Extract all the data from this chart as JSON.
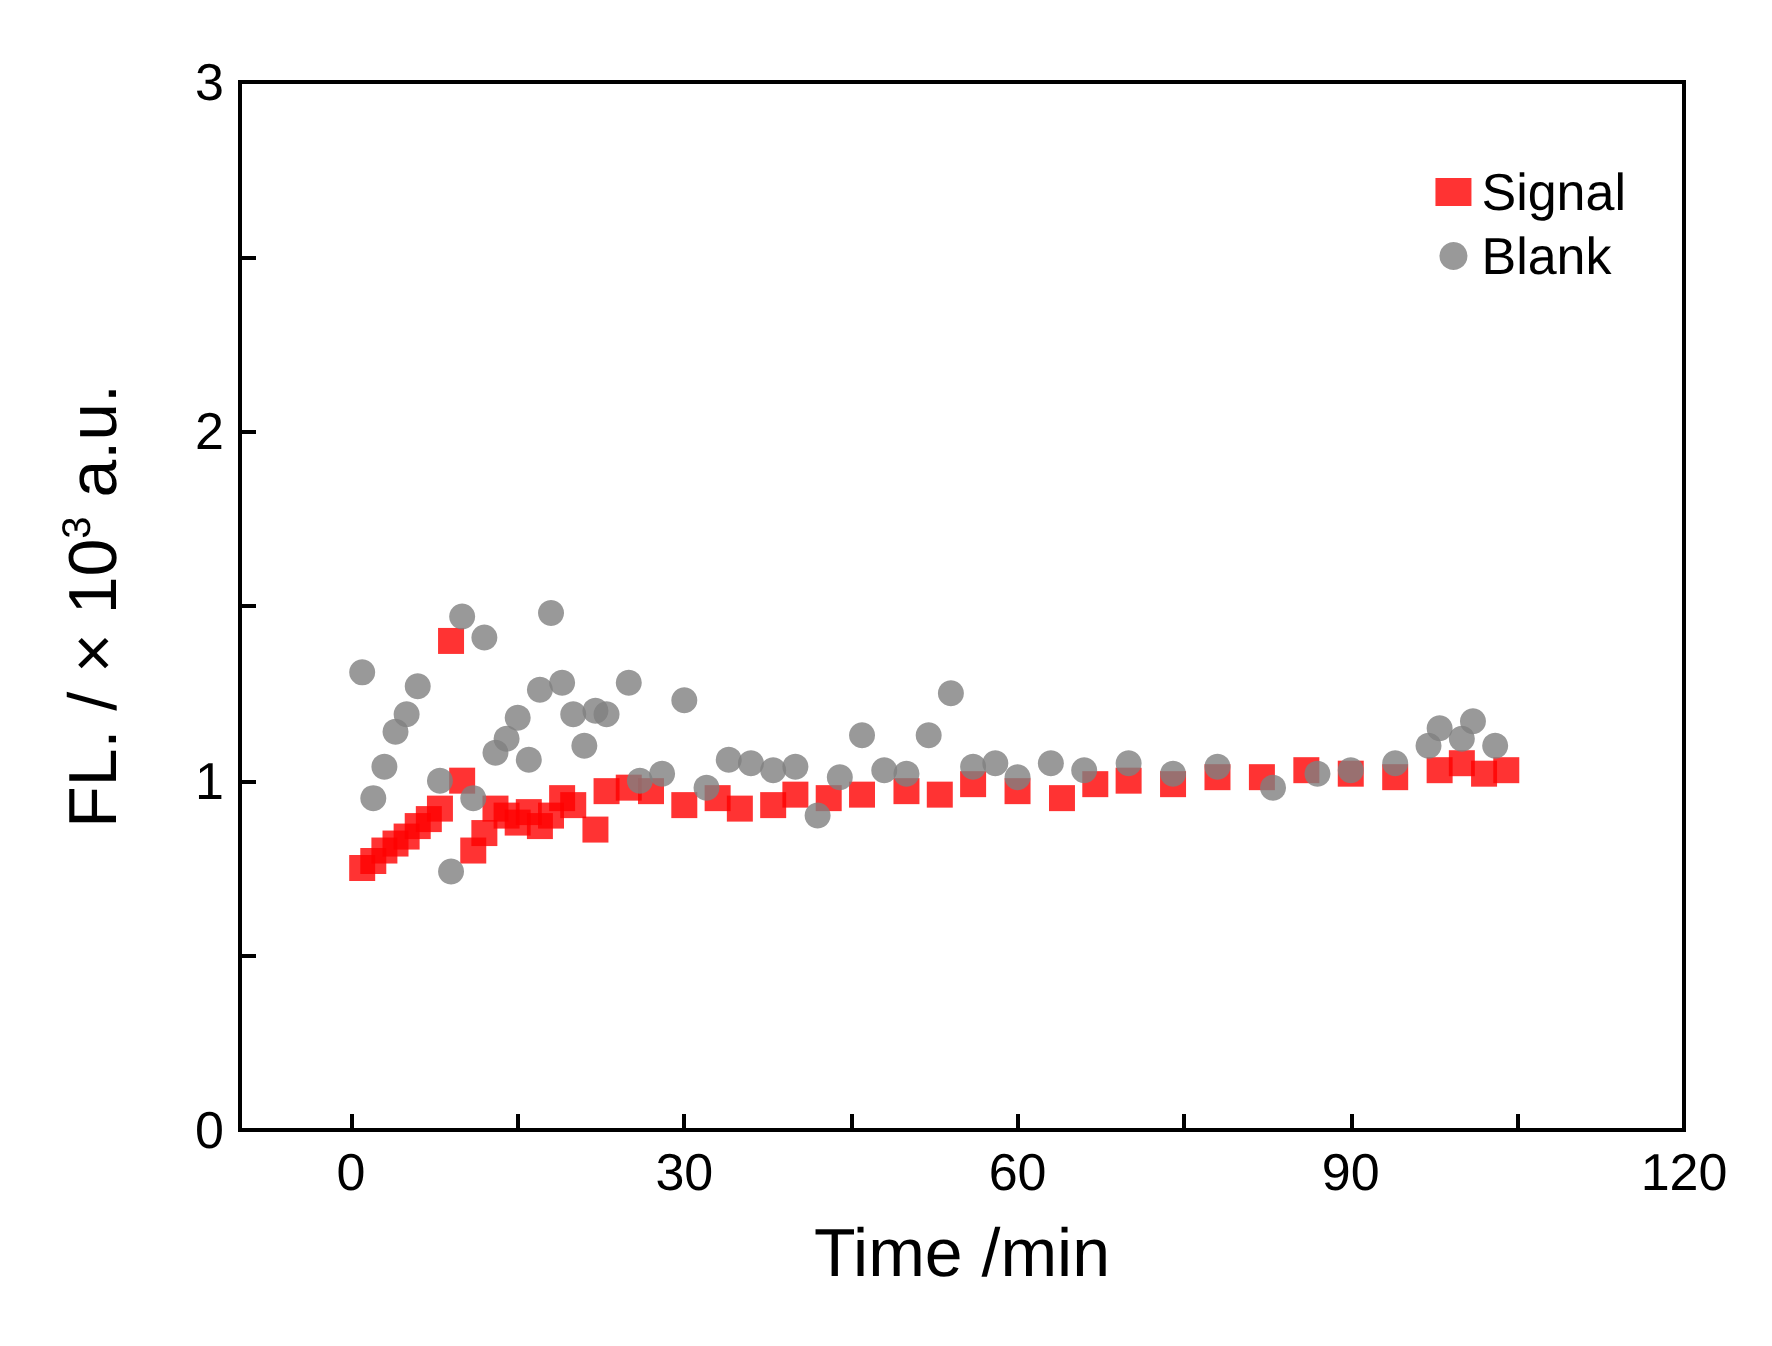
{
  "chart_data": {
    "type": "scatter",
    "xlabel": "Time /min",
    "ylabel": "FL. / × 10$^{3}$ a.u.",
    "xlim": [
      -10,
      120
    ],
    "ylim": [
      0,
      3
    ],
    "xticks": [
      0,
      {
        "value": 15,
        "label": null
      },
      30,
      {
        "value": 45,
        "label": null
      },
      60,
      {
        "value": 75,
        "label": null
      },
      90,
      {
        "value": 105,
        "label": null
      },
      120
    ],
    "yticks": [
      0,
      {
        "value": 0.5,
        "label": null
      },
      1,
      {
        "value": 1.5,
        "label": null
      },
      2,
      {
        "value": 2.5,
        "label": null
      },
      3
    ],
    "legend": "top right",
    "grid": false,
    "series": [
      {
        "name": "Signal",
        "color": "#ff0000",
        "marker": "square",
        "x": [
          1,
          2,
          3,
          4,
          5,
          6,
          7,
          8,
          9,
          10,
          11,
          12,
          13,
          14,
          15,
          16,
          17,
          18,
          19,
          20,
          22,
          23,
          25,
          27,
          30,
          33,
          35,
          38,
          40,
          43,
          46,
          50,
          53,
          56,
          60,
          64,
          67,
          70,
          74,
          78,
          82,
          86,
          90,
          94,
          98,
          100,
          102,
          104
        ],
        "values": [
          0.75,
          0.77,
          0.8,
          0.82,
          0.84,
          0.87,
          0.89,
          0.92,
          1.4,
          1.0,
          0.8,
          0.85,
          0.92,
          0.9,
          0.88,
          0.91,
          0.87,
          0.9,
          0.95,
          0.93,
          0.86,
          0.97,
          0.98,
          0.97,
          0.93,
          0.95,
          0.92,
          0.93,
          0.96,
          0.95,
          0.96,
          0.97,
          0.96,
          0.99,
          0.97,
          0.95,
          0.99,
          1.0,
          0.99,
          1.01,
          1.01,
          1.03,
          1.02,
          1.01,
          1.03,
          1.05,
          1.02,
          1.03
        ]
      },
      {
        "name": "Blank",
        "color": "#808080",
        "marker": "circle",
        "x": [
          1,
          2,
          3,
          4,
          5,
          6,
          8,
          9,
          10,
          11,
          12,
          13,
          14,
          15,
          16,
          17,
          18,
          19,
          20,
          21,
          22,
          23,
          25,
          26,
          28,
          30,
          32,
          34,
          36,
          38,
          40,
          42,
          44,
          46,
          48,
          50,
          52,
          54,
          56,
          58,
          60,
          63,
          66,
          70,
          74,
          78,
          83,
          87,
          90,
          94,
          97,
          98,
          100,
          101,
          103
        ],
        "values": [
          1.31,
          0.95,
          1.04,
          1.14,
          1.19,
          1.27,
          1.0,
          0.74,
          1.47,
          0.95,
          1.41,
          1.08,
          1.12,
          1.18,
          1.06,
          1.26,
          1.48,
          1.28,
          1.19,
          1.1,
          1.2,
          1.19,
          1.28,
          1.0,
          1.02,
          1.23,
          0.98,
          1.06,
          1.05,
          1.03,
          1.04,
          0.9,
          1.01,
          1.13,
          1.03,
          1.02,
          1.13,
          1.25,
          1.04,
          1.05,
          1.01,
          1.05,
          1.03,
          1.05,
          1.02,
          1.04,
          0.98,
          1.02,
          1.03,
          1.05,
          1.1,
          1.15,
          1.12,
          1.17,
          1.1
        ]
      }
    ]
  }
}
